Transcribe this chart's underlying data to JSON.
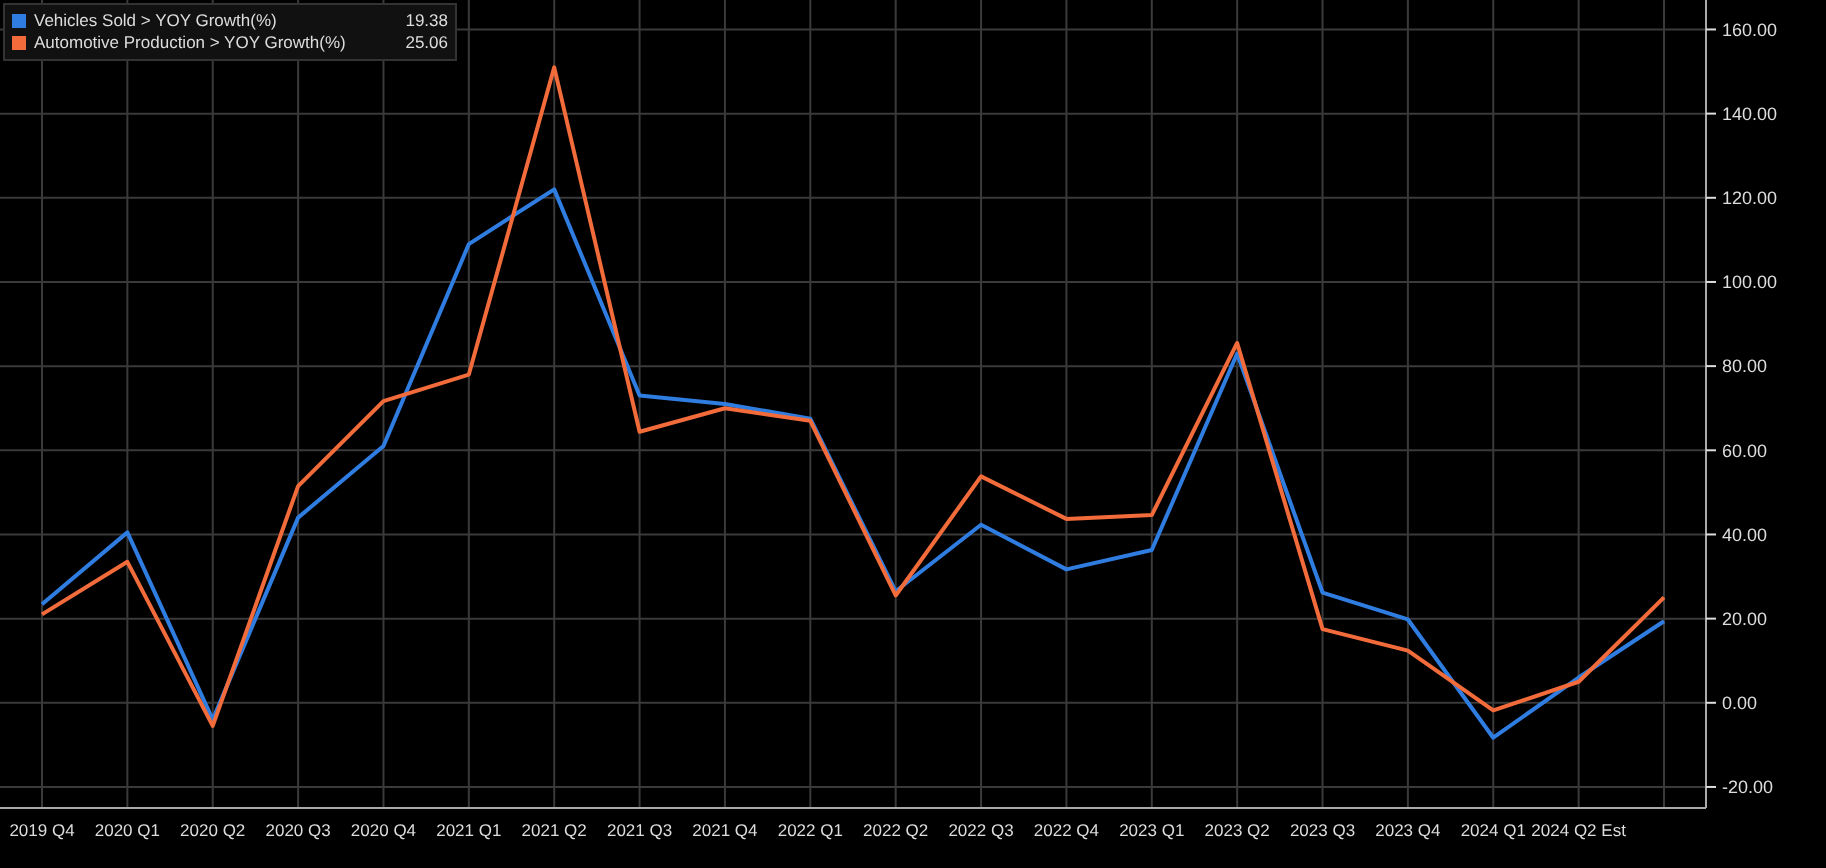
{
  "chart_data": {
    "type": "line",
    "categories": [
      "2019 Q4",
      "2020 Q1",
      "2020 Q2",
      "2020 Q3",
      "2020 Q4",
      "2021 Q1",
      "2021 Q2",
      "2021 Q3",
      "2021 Q4",
      "2022 Q1",
      "2022 Q2",
      "2022 Q3",
      "2022 Q4",
      "2023 Q1",
      "2023 Q2",
      "2023 Q3",
      "2023 Q4",
      "2024 Q1",
      "2024 Q2 Est",
      null
    ],
    "series": [
      {
        "name": "Vehicles Sold > YOY Growth(%)",
        "color": "#2f7de1",
        "values": [
          23.4,
          40.5,
          -4,
          44,
          61,
          109,
          122,
          73,
          71,
          67.5,
          26.5,
          42.3,
          31.7,
          36.3,
          83,
          26.2,
          19.8,
          -8.3,
          6,
          19.38
        ]
      },
      {
        "name": "Automotive Production > YOY Growth(%)",
        "color": "#f26b3a",
        "values": [
          21,
          33.5,
          -5.5,
          51.5,
          71.7,
          78,
          151,
          64.4,
          70,
          67,
          25.5,
          53.8,
          43.7,
          44.6,
          85.5,
          17.5,
          12.4,
          -1.8,
          5,
          25.06
        ]
      }
    ],
    "annotations": [
      "19.38",
      "25.06"
    ],
    "ylim": [
      -25,
      167
    ],
    "yticks": [
      {
        "value": -20,
        "label": "-20.00"
      },
      {
        "value": 0,
        "label": "0.00"
      },
      {
        "value": 20,
        "label": "20.00"
      },
      {
        "value": 40,
        "label": "40.00"
      },
      {
        "value": 60,
        "label": "60.00"
      },
      {
        "value": 80,
        "label": "80.00"
      },
      {
        "value": 100,
        "label": "100.00"
      },
      {
        "value": 120,
        "label": "120.00"
      },
      {
        "value": 140,
        "label": "140.00"
      },
      {
        "value": 160,
        "label": "160.00"
      }
    ],
    "grid": true,
    "legend": "top left",
    "line_style": "solid",
    "marker": "none"
  }
}
